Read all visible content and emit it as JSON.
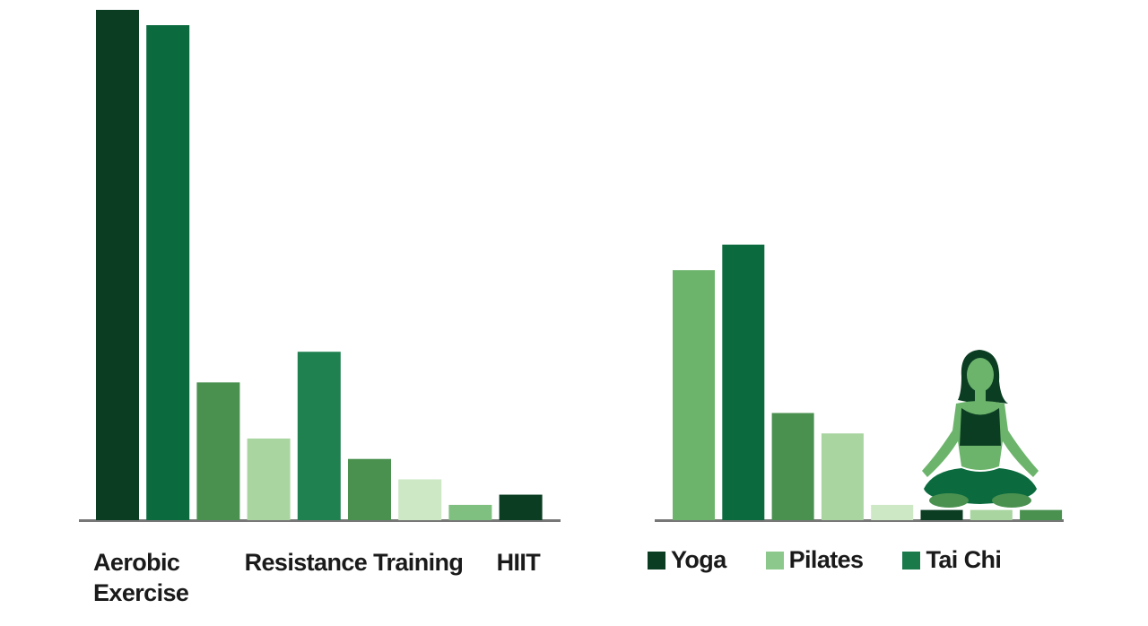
{
  "chart_data": [
    {
      "type": "bar",
      "categories": [
        "Aerobic Exercise",
        null,
        null,
        "Resistance Training",
        null,
        null,
        null,
        null,
        "HIIT"
      ],
      "values": [
        100,
        97,
        27,
        16,
        33,
        12,
        8,
        3,
        5
      ],
      "colors": [
        "#0b3d22",
        "#0b6b3e",
        "#4a9150",
        "#a8d5a0",
        "#1f8050",
        "#4a9150",
        "#cce8c4",
        "#7fbf7f",
        "#0b3d22"
      ],
      "ylim": [
        0,
        100
      ]
    },
    {
      "type": "bar",
      "values": [
        49,
        54,
        21,
        17,
        3,
        2,
        2,
        2
      ],
      "colors": [
        "#6cb46c",
        "#0b6b3e",
        "#4a9150",
        "#a8d5a0",
        "#cce8c4",
        "#0b3d22",
        "#a8d5a0",
        "#4a9150"
      ],
      "ylim": [
        0,
        100
      ],
      "legend": [
        {
          "name": "Yoga",
          "color": "#0b3d22"
        },
        {
          "name": "Pilates",
          "color": "#8cc88c"
        },
        {
          "name": "Tai Chi",
          "color": "#1a7a4a"
        }
      ]
    }
  ]
}
